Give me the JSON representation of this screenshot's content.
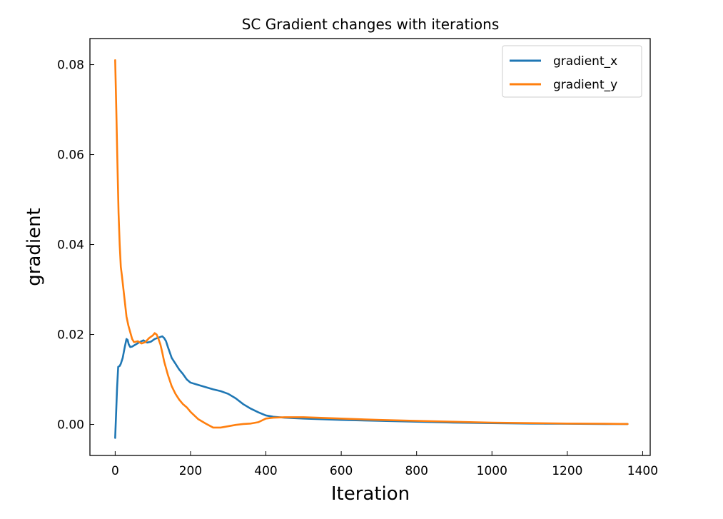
{
  "chart_data": {
    "type": "line",
    "title": "SC Gradient changes with iterations",
    "xlabel": "Iteration",
    "ylabel": "gradient",
    "xlim": [
      -67,
      1420
    ],
    "ylim": [
      -0.0069,
      0.0858
    ],
    "xticks": [
      0,
      200,
      400,
      600,
      800,
      1000,
      1200,
      1400
    ],
    "xtick_labels": [
      "0",
      "200",
      "400",
      "600",
      "800",
      "1000",
      "1200",
      "1400"
    ],
    "yticks": [
      0.0,
      0.02,
      0.04,
      0.06,
      0.08
    ],
    "ytick_labels": [
      "0.00",
      "0.02",
      "0.04",
      "0.06",
      "0.08"
    ],
    "grid": false,
    "legend": {
      "position": "top-right"
    },
    "series": [
      {
        "name": "gradient_x",
        "color": "#1f77b4",
        "x": [
          0,
          5,
          8,
          12,
          15,
          20,
          25,
          30,
          33,
          36,
          40,
          45,
          55,
          65,
          75,
          85,
          95,
          105,
          115,
          125,
          130,
          135,
          140,
          150,
          160,
          170,
          180,
          190,
          200,
          220,
          240,
          260,
          280,
          300,
          320,
          340,
          360,
          380,
          400,
          420,
          450,
          500,
          600,
          700,
          800,
          900,
          1000,
          1100,
          1200,
          1300,
          1360
        ],
        "y": [
          -0.003,
          0.008,
          0.0128,
          0.013,
          0.0135,
          0.0148,
          0.017,
          0.019,
          0.0188,
          0.0178,
          0.0172,
          0.0173,
          0.0178,
          0.0183,
          0.0187,
          0.0182,
          0.0184,
          0.019,
          0.0193,
          0.0196,
          0.0192,
          0.0185,
          0.0172,
          0.0148,
          0.0135,
          0.0122,
          0.0112,
          0.01,
          0.0093,
          0.0088,
          0.0083,
          0.0078,
          0.0074,
          0.0068,
          0.0058,
          0.0045,
          0.0035,
          0.0027,
          0.002,
          0.0017,
          0.0015,
          0.0013,
          0.001,
          0.0008,
          0.0006,
          0.0004,
          0.0003,
          0.0002,
          0.00015,
          0.0001,
          0.0001
        ]
      },
      {
        "name": "gradient_y",
        "color": "#ff7f0e",
        "x": [
          0,
          3,
          6,
          9,
          12,
          15,
          18,
          22,
          26,
          30,
          35,
          40,
          45,
          50,
          60,
          70,
          80,
          90,
          100,
          105,
          110,
          115,
          120,
          125,
          130,
          140,
          150,
          160,
          170,
          180,
          190,
          200,
          220,
          240,
          260,
          280,
          300,
          320,
          340,
          360,
          380,
          400,
          420,
          450,
          500,
          600,
          700,
          800,
          900,
          1000,
          1100,
          1200,
          1300,
          1360
        ],
        "y": [
          0.081,
          0.07,
          0.058,
          0.047,
          0.04,
          0.035,
          0.033,
          0.03,
          0.027,
          0.024,
          0.022,
          0.0205,
          0.019,
          0.0183,
          0.0185,
          0.018,
          0.0183,
          0.0192,
          0.0198,
          0.0203,
          0.02,
          0.019,
          0.0178,
          0.016,
          0.014,
          0.011,
          0.0085,
          0.0068,
          0.0055,
          0.0045,
          0.0038,
          0.0028,
          0.0012,
          0.0002,
          -0.0007,
          -0.0007,
          -0.0004,
          -0.0001,
          0.0001,
          0.0002,
          0.0005,
          0.0013,
          0.0015,
          0.0016,
          0.0016,
          0.0013,
          0.001,
          0.0008,
          0.0006,
          0.0004,
          0.0003,
          0.0002,
          0.00015,
          0.0001
        ]
      }
    ]
  }
}
